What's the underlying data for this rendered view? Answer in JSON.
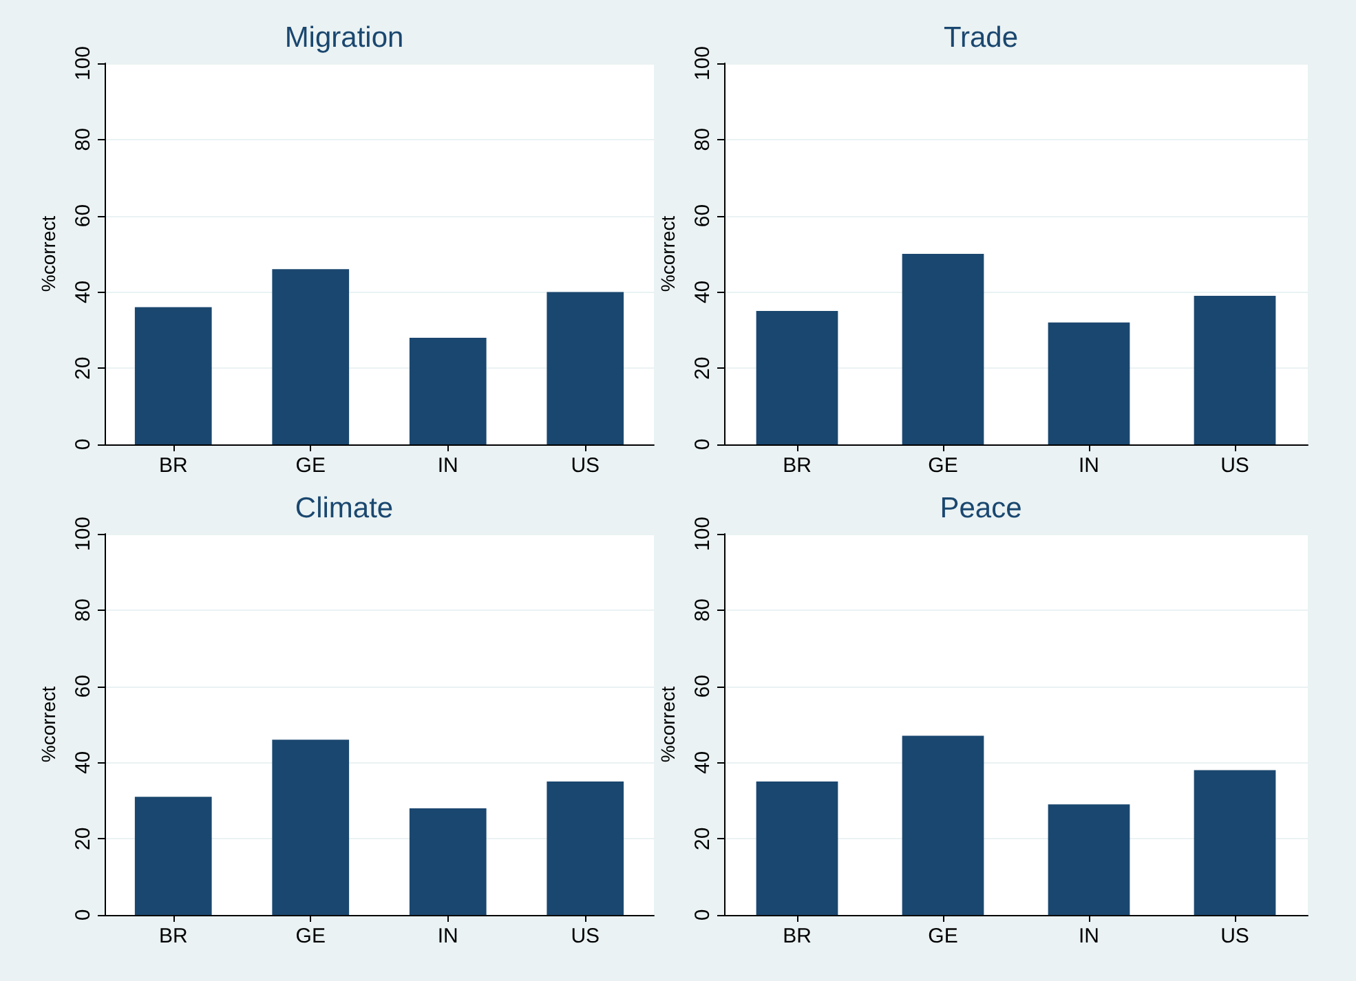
{
  "chart_data": [
    {
      "type": "bar",
      "title": "Migration",
      "ylabel": "%correct",
      "categories": [
        "BR",
        "GE",
        "IN",
        "US"
      ],
      "values": [
        36,
        46,
        28,
        40
      ],
      "color": "#1a476f",
      "ylim": [
        0,
        100
      ],
      "yticks": [
        0,
        20,
        40,
        60,
        80,
        100
      ],
      "grid": "y"
    },
    {
      "type": "bar",
      "title": "Trade",
      "ylabel": "%correct",
      "categories": [
        "BR",
        "GE",
        "IN",
        "US"
      ],
      "values": [
        35,
        50,
        32,
        39
      ],
      "color": "#1a476f",
      "ylim": [
        0,
        100
      ],
      "yticks": [
        0,
        20,
        40,
        60,
        80,
        100
      ],
      "grid": "y"
    },
    {
      "type": "bar",
      "title": "Climate",
      "ylabel": "%correct",
      "categories": [
        "BR",
        "GE",
        "IN",
        "US"
      ],
      "values": [
        31,
        46,
        28,
        35
      ],
      "color": "#1a476f",
      "ylim": [
        0,
        100
      ],
      "yticks": [
        0,
        20,
        40,
        60,
        80,
        100
      ],
      "grid": "y"
    },
    {
      "type": "bar",
      "title": "Peace",
      "ylabel": "%correct",
      "categories": [
        "BR",
        "GE",
        "IN",
        "US"
      ],
      "values": [
        35,
        47,
        29,
        38
      ],
      "color": "#1a476f",
      "ylim": [
        0,
        100
      ],
      "yticks": [
        0,
        20,
        40,
        60,
        80,
        100
      ],
      "grid": "y"
    }
  ]
}
